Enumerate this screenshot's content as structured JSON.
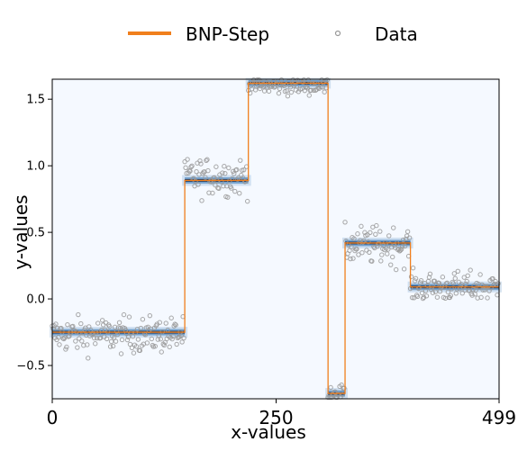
{
  "chart_data": {
    "type": "line",
    "title": "",
    "xlabel": "x-values",
    "ylabel": "y-values",
    "xlim": [
      0,
      499
    ],
    "ylim": [
      -0.75,
      1.65
    ],
    "x_ticks": [
      0,
      250,
      499
    ],
    "x_tick_labels": [
      "0",
      "250",
      "499"
    ],
    "y_ticks": [
      -0.5,
      0.0,
      0.5,
      1.0,
      1.5
    ],
    "y_tick_labels": [
      "−0.5",
      "0.0",
      "0.5",
      "1.0",
      "1.5"
    ],
    "legend": {
      "placement": "top-center",
      "entries": [
        {
          "name": "BNP-Step",
          "marker": "line",
          "color": "#f07f1d"
        },
        {
          "name": "Data",
          "marker": "open-circle",
          "color": "#999999"
        }
      ]
    },
    "series": [
      {
        "name": "BNP-Step",
        "style": "step",
        "color": "#f07f1d",
        "segments": [
          {
            "x_start": 0,
            "x_end": 148,
            "y": -0.25
          },
          {
            "x_start": 148,
            "x_end": 219,
            "y": 0.89
          },
          {
            "x_start": 219,
            "x_end": 308,
            "y": 1.62
          },
          {
            "x_start": 308,
            "x_end": 327,
            "y": -0.71
          },
          {
            "x_start": 327,
            "x_end": 400,
            "y": 0.42
          },
          {
            "x_start": 400,
            "x_end": 499,
            "y": 0.09
          }
        ]
      },
      {
        "name": "Data",
        "style": "scatter",
        "color": "#999999",
        "level_noise": [
          {
            "x_start": 0,
            "x_end": 148,
            "center": -0.27,
            "spread": 0.12
          },
          {
            "x_start": 148,
            "x_end": 219,
            "center": 0.92,
            "spread": 0.13
          },
          {
            "x_start": 219,
            "x_end": 308,
            "center": 1.6,
            "spread": 0.06
          },
          {
            "x_start": 308,
            "x_end": 327,
            "center": -0.7,
            "spread": 0.05
          },
          {
            "x_start": 327,
            "x_end": 400,
            "center": 0.4,
            "spread": 0.13
          },
          {
            "x_start": 400,
            "x_end": 499,
            "center": 0.09,
            "spread": 0.1
          }
        ]
      }
    ],
    "posterior_band_color": "#2a6fb0",
    "plot_background": "#f5f9ff",
    "grid": false
  }
}
